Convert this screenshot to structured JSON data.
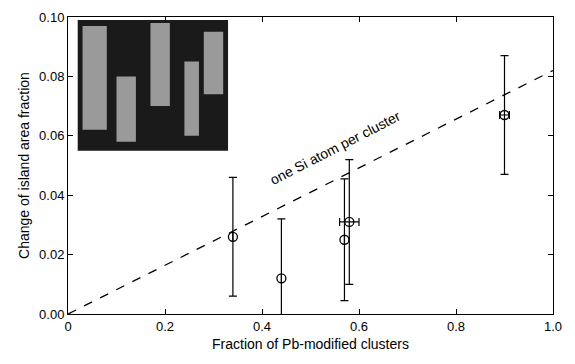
{
  "chart_data": {
    "type": "scatter",
    "x_label": "Fraction of Pb-modified clusters",
    "y_label": "Change of island area fraction",
    "xlim": [
      0,
      1.0
    ],
    "xticks": [
      0,
      0.2,
      0.4,
      0.6,
      0.8,
      {
        "value": 1.0,
        "label": "1.0"
      }
    ],
    "ylim": [
      0,
      0.1
    ],
    "yticks": [
      {
        "value": 0,
        "label": "0.00"
      },
      {
        "value": 0.02,
        "label": "0.02"
      },
      {
        "value": 0.04,
        "label": "0.04"
      },
      {
        "value": 0.06,
        "label": "0.06"
      },
      {
        "value": 0.08,
        "label": "0.08"
      },
      {
        "value": 0.1,
        "label": "0.10"
      }
    ],
    "grid": false,
    "series": [
      {
        "type": "scatter",
        "marker": "open circle",
        "color": "#000000",
        "x": [
          0.34,
          0.44,
          0.57,
          0.58,
          0.9
        ],
        "values": [
          0.026,
          0.012,
          0.025,
          0.031,
          0.067
        ],
        "y_error": [
          0.02,
          0.02,
          0.0205,
          0.021,
          0.02
        ],
        "x_error": [
          0,
          0,
          0,
          0.02,
          0.01
        ]
      },
      {
        "type": "line",
        "line_style": "dashed",
        "color": "#000000",
        "x": [
          0,
          1.0
        ],
        "values": [
          0,
          0.082
        ]
      }
    ],
    "annotations": [
      {
        "text": "one Si atom per cluster",
        "x": 0.55,
        "y": 0.056
      }
    ]
  }
}
